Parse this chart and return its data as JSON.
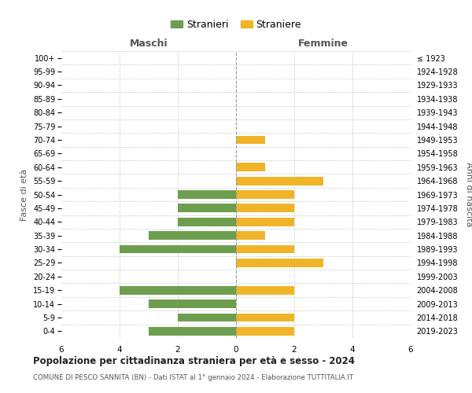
{
  "age_groups": [
    "100+",
    "95-99",
    "90-94",
    "85-89",
    "80-84",
    "75-79",
    "70-74",
    "65-69",
    "60-64",
    "55-59",
    "50-54",
    "45-49",
    "40-44",
    "35-39",
    "30-34",
    "25-29",
    "20-24",
    "15-19",
    "10-14",
    "5-9",
    "0-4"
  ],
  "birth_years": [
    "≤ 1923",
    "1924-1928",
    "1929-1933",
    "1934-1938",
    "1939-1943",
    "1944-1948",
    "1949-1953",
    "1954-1958",
    "1959-1963",
    "1964-1968",
    "1969-1973",
    "1974-1978",
    "1979-1983",
    "1984-1988",
    "1989-1993",
    "1994-1998",
    "1999-2003",
    "2004-2008",
    "2009-2013",
    "2014-2018",
    "2019-2023"
  ],
  "maschi": [
    0,
    0,
    0,
    0,
    0,
    0,
    0,
    0,
    0,
    0,
    2,
    2,
    2,
    3,
    4,
    0,
    0,
    4,
    3,
    2,
    3
  ],
  "femmine": [
    0,
    0,
    0,
    0,
    0,
    0,
    1,
    0,
    1,
    3,
    2,
    2,
    2,
    1,
    2,
    3,
    0,
    2,
    0,
    2,
    2
  ],
  "color_maschi": "#6d9e4e",
  "color_femmine": "#f0b429",
  "label_maschi": "Maschi",
  "label_femmine": "Femmine",
  "ylabel_left": "Fasce di età",
  "ylabel_right": "Anni di nascita",
  "title": "Popolazione per cittadinanza straniera per età e sesso - 2024",
  "subtitle": "COMUNE DI PESCO SANNITA (BN) - Dati ISTAT al 1° gennaio 2024 - Elaborazione TUTTITALIA.IT",
  "legend_maschi": "Stranieri",
  "legend_femmine": "Straniere",
  "xlim": 6,
  "background_color": "#ffffff",
  "grid_color": "#cccccc",
  "grid_color_dashed": "#aaaaaa"
}
